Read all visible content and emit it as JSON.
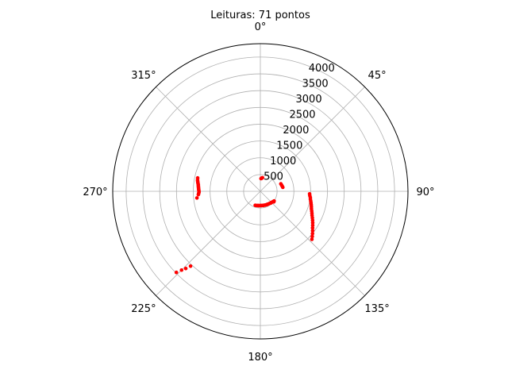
{
  "chart_data": {
    "type": "scatter",
    "projection": "polar",
    "title": "Leituras: 71 pontos",
    "theta_zero_location": "top",
    "theta_direction": "clockwise",
    "theta_ticks": [
      "0°",
      "45°",
      "90°",
      "135°",
      "180°",
      "225°",
      "270°",
      "315°"
    ],
    "r_ticks": [
      500,
      1000,
      1500,
      2000,
      2500,
      3000,
      3500,
      4000
    ],
    "rlim": [
      0,
      4400
    ],
    "grid": true,
    "marker_color": "#ff0000",
    "series": [
      {
        "points": [
          {
            "theta": 3,
            "r": 380
          },
          {
            "theta": 5,
            "r": 390
          },
          {
            "theta": 7,
            "r": 400
          },
          {
            "theta": 9,
            "r": 410
          },
          {
            "theta": 70,
            "r": 650
          },
          {
            "theta": 74,
            "r": 660
          },
          {
            "theta": 77,
            "r": 670
          },
          {
            "theta": 80,
            "r": 680
          },
          {
            "theta": 93,
            "r": 1470
          },
          {
            "theta": 95,
            "r": 1480
          },
          {
            "theta": 97,
            "r": 1500
          },
          {
            "theta": 99,
            "r": 1510
          },
          {
            "theta": 101,
            "r": 1530
          },
          {
            "theta": 103,
            "r": 1550
          },
          {
            "theta": 105,
            "r": 1570
          },
          {
            "theta": 107,
            "r": 1590
          },
          {
            "theta": 109,
            "r": 1610
          },
          {
            "theta": 111,
            "r": 1640
          },
          {
            "theta": 113,
            "r": 1670
          },
          {
            "theta": 115,
            "r": 1700
          },
          {
            "theta": 117,
            "r": 1740
          },
          {
            "theta": 119,
            "r": 1780
          },
          {
            "theta": 121,
            "r": 1820
          },
          {
            "theta": 123,
            "r": 1860
          },
          {
            "theta": 125,
            "r": 1900
          },
          {
            "theta": 127,
            "r": 1950
          },
          {
            "theta": 129,
            "r": 2000
          },
          {
            "theta": 131,
            "r": 2050
          },
          {
            "theta": 133,
            "r": 2100
          },
          {
            "theta": 125,
            "r": 500
          },
          {
            "theta": 130,
            "r": 485
          },
          {
            "theta": 135,
            "r": 470
          },
          {
            "theta": 140,
            "r": 460
          },
          {
            "theta": 145,
            "r": 450
          },
          {
            "theta": 150,
            "r": 445
          },
          {
            "theta": 155,
            "r": 440
          },
          {
            "theta": 160,
            "r": 435
          },
          {
            "theta": 165,
            "r": 430
          },
          {
            "theta": 170,
            "r": 428
          },
          {
            "theta": 175,
            "r": 425
          },
          {
            "theta": 180,
            "r": 425
          },
          {
            "theta": 185,
            "r": 428
          },
          {
            "theta": 190,
            "r": 432
          },
          {
            "theta": 195,
            "r": 438
          },
          {
            "theta": 200,
            "r": 445
          },
          {
            "theta": 128,
            "r": 510
          },
          {
            "theta": 138,
            "r": 470
          },
          {
            "theta": 152,
            "r": 442
          },
          {
            "theta": 168,
            "r": 430
          },
          {
            "theta": 178,
            "r": 426
          },
          {
            "theta": 188,
            "r": 430
          },
          {
            "theta": 226,
            "r": 3480
          },
          {
            "theta": 225,
            "r": 3320
          },
          {
            "theta": 224,
            "r": 3200
          },
          {
            "theta": 223,
            "r": 3050
          },
          {
            "theta": 264,
            "r": 1900
          },
          {
            "theta": 267,
            "r": 1850
          },
          {
            "theta": 268,
            "r": 1840
          },
          {
            "theta": 269,
            "r": 1830
          },
          {
            "theta": 270,
            "r": 1830
          },
          {
            "theta": 271,
            "r": 1835
          },
          {
            "theta": 272,
            "r": 1840
          },
          {
            "theta": 273,
            "r": 1845
          },
          {
            "theta": 274,
            "r": 1850
          },
          {
            "theta": 275,
            "r": 1855
          },
          {
            "theta": 276,
            "r": 1860
          },
          {
            "theta": 277,
            "r": 1870
          },
          {
            "theta": 278,
            "r": 1880
          },
          {
            "theta": 279,
            "r": 1890
          },
          {
            "theta": 280,
            "r": 1900
          },
          {
            "theta": 282,
            "r": 1910
          }
        ]
      }
    ]
  }
}
